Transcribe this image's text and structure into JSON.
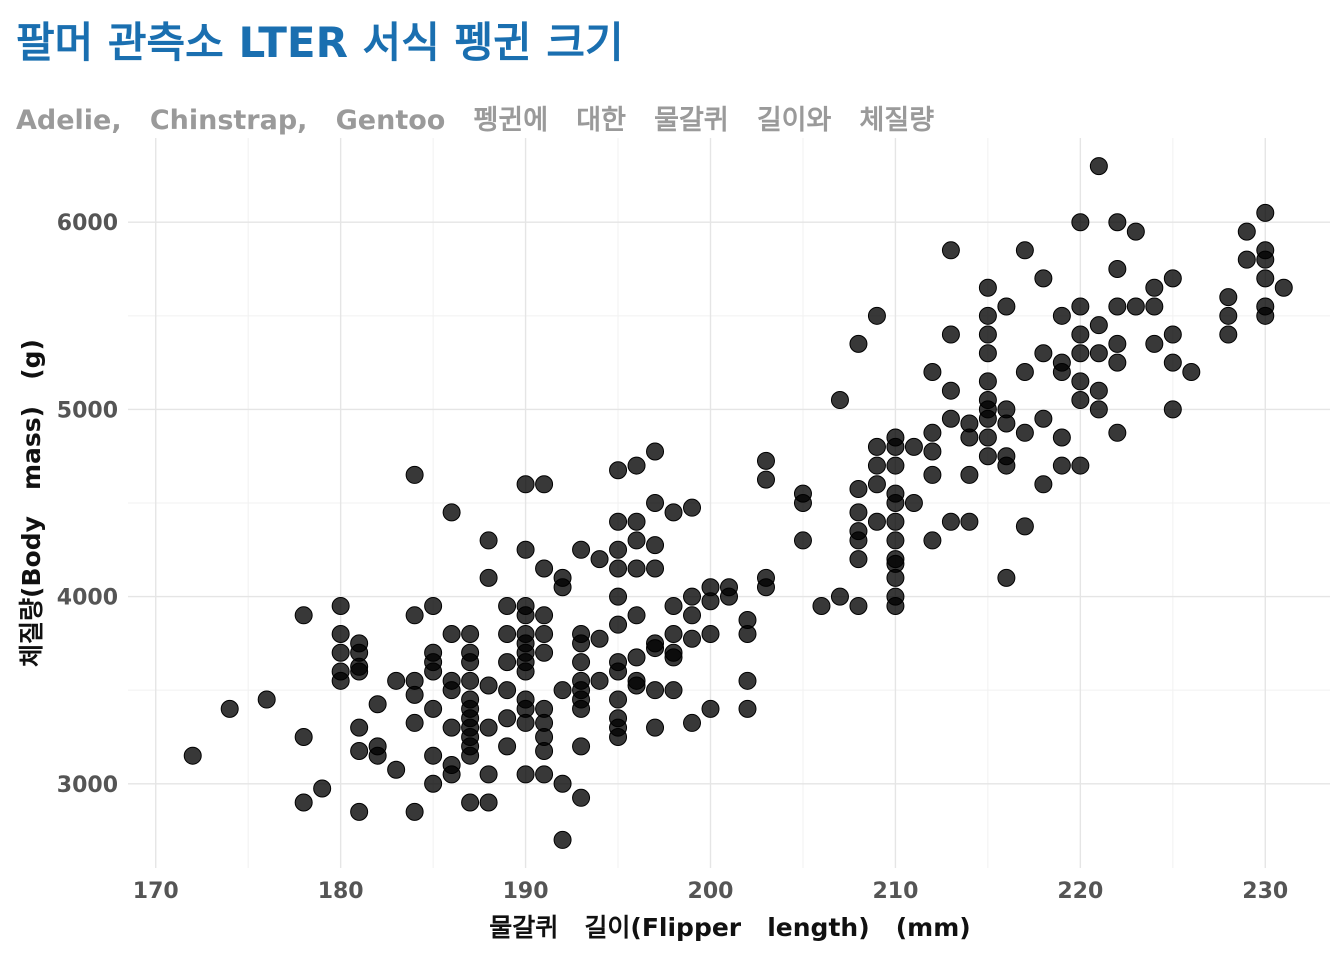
{
  "chart_data": {
    "type": "scatter",
    "title": "팔머 관측소 LTER 서식 펭귄 크기",
    "subtitle": "Adelie,   Chinstrap,   Gentoo   펭귄에   대한   물갈퀴   길이와   체질량",
    "xlabel": "물갈퀴   길이(Flipper   length)   (mm)",
    "ylabel": "체질량(Body   mass)   (g)",
    "xlim": [
      168.5,
      233.5
    ],
    "ylim": [
      2550,
      6450
    ],
    "x_ticks": [
      170,
      180,
      190,
      200,
      210,
      220,
      230
    ],
    "y_ticks": [
      3000,
      4000,
      5000,
      6000
    ],
    "grid": true,
    "legend": "none",
    "colors": {
      "title": "#1a6fb0",
      "subtitle": "#9a9a9a",
      "points": "#000000",
      "grid": "#e5e5e5"
    },
    "points": [
      [
        172,
        3150
      ],
      [
        174,
        3400
      ],
      [
        176,
        3450
      ],
      [
        178,
        3900
      ],
      [
        178,
        3250
      ],
      [
        178,
        2900
      ],
      [
        179,
        2975
      ],
      [
        180,
        3950
      ],
      [
        180,
        3800
      ],
      [
        180,
        3700
      ],
      [
        180,
        3600
      ],
      [
        180,
        3550
      ],
      [
        181,
        3750
      ],
      [
        181,
        3700
      ],
      [
        181,
        3625
      ],
      [
        181,
        3600
      ],
      [
        181,
        3300
      ],
      [
        181,
        3175
      ],
      [
        181,
        2850
      ],
      [
        182,
        3425
      ],
      [
        182,
        3200
      ],
      [
        182,
        3150
      ],
      [
        183,
        3550
      ],
      [
        183,
        3075
      ],
      [
        184,
        4650
      ],
      [
        184,
        3900
      ],
      [
        184,
        3550
      ],
      [
        184,
        3475
      ],
      [
        184,
        3325
      ],
      [
        184,
        2850
      ],
      [
        185,
        3950
      ],
      [
        185,
        3700
      ],
      [
        185,
        3650
      ],
      [
        185,
        3600
      ],
      [
        185,
        3400
      ],
      [
        185,
        3150
      ],
      [
        185,
        3000
      ],
      [
        186,
        4450
      ],
      [
        186,
        3800
      ],
      [
        186,
        3550
      ],
      [
        186,
        3500
      ],
      [
        186,
        3300
      ],
      [
        186,
        3100
      ],
      [
        186,
        3050
      ],
      [
        187,
        3800
      ],
      [
        187,
        3700
      ],
      [
        187,
        3650
      ],
      [
        187,
        3550
      ],
      [
        187,
        3450
      ],
      [
        187,
        3400
      ],
      [
        187,
        3350
      ],
      [
        187,
        3300
      ],
      [
        187,
        3250
      ],
      [
        187,
        3200
      ],
      [
        187,
        3150
      ],
      [
        187,
        2900
      ],
      [
        188,
        4300
      ],
      [
        188,
        4100
      ],
      [
        188,
        3525
      ],
      [
        188,
        3300
      ],
      [
        188,
        3050
      ],
      [
        188,
        2900
      ],
      [
        189,
        3950
      ],
      [
        189,
        3800
      ],
      [
        189,
        3650
      ],
      [
        189,
        3500
      ],
      [
        189,
        3350
      ],
      [
        189,
        3200
      ],
      [
        190,
        4600
      ],
      [
        190,
        4250
      ],
      [
        190,
        3950
      ],
      [
        190,
        3900
      ],
      [
        190,
        3800
      ],
      [
        190,
        3750
      ],
      [
        190,
        3700
      ],
      [
        190,
        3650
      ],
      [
        190,
        3600
      ],
      [
        190,
        3450
      ],
      [
        190,
        3400
      ],
      [
        190,
        3325
      ],
      [
        190,
        3050
      ],
      [
        191,
        4600
      ],
      [
        191,
        4150
      ],
      [
        191,
        3900
      ],
      [
        191,
        3800
      ],
      [
        191,
        3700
      ],
      [
        191,
        3400
      ],
      [
        191,
        3325
      ],
      [
        191,
        3250
      ],
      [
        191,
        3175
      ],
      [
        191,
        3050
      ],
      [
        192,
        4100
      ],
      [
        192,
        4050
      ],
      [
        192,
        3500
      ],
      [
        192,
        3000
      ],
      [
        192,
        2700
      ],
      [
        193,
        4250
      ],
      [
        193,
        3800
      ],
      [
        193,
        3750
      ],
      [
        193,
        3650
      ],
      [
        193,
        3550
      ],
      [
        193,
        3500
      ],
      [
        193,
        3450
      ],
      [
        193,
        3400
      ],
      [
        193,
        3200
      ],
      [
        193,
        2925
      ],
      [
        194,
        4200
      ],
      [
        194,
        3775
      ],
      [
        194,
        3550
      ],
      [
        195,
        4675
      ],
      [
        195,
        4400
      ],
      [
        195,
        4250
      ],
      [
        195,
        4150
      ],
      [
        195,
        4000
      ],
      [
        195,
        3850
      ],
      [
        195,
        3650
      ],
      [
        195,
        3600
      ],
      [
        195,
        3450
      ],
      [
        195,
        3350
      ],
      [
        195,
        3300
      ],
      [
        195,
        3250
      ],
      [
        196,
        4700
      ],
      [
        196,
        4400
      ],
      [
        196,
        4300
      ],
      [
        196,
        4150
      ],
      [
        196,
        3900
      ],
      [
        196,
        3675
      ],
      [
        196,
        3550
      ],
      [
        196,
        3525
      ],
      [
        197,
        4775
      ],
      [
        197,
        4500
      ],
      [
        197,
        4275
      ],
      [
        197,
        4150
      ],
      [
        197,
        3750
      ],
      [
        197,
        3725
      ],
      [
        197,
        3500
      ],
      [
        197,
        3300
      ],
      [
        198,
        4450
      ],
      [
        198,
        3950
      ],
      [
        198,
        3800
      ],
      [
        198,
        3700
      ],
      [
        198,
        3675
      ],
      [
        198,
        3500
      ],
      [
        199,
        4475
      ],
      [
        199,
        4000
      ],
      [
        199,
        3900
      ],
      [
        199,
        3775
      ],
      [
        199,
        3325
      ],
      [
        200,
        4050
      ],
      [
        200,
        3975
      ],
      [
        200,
        3800
      ],
      [
        200,
        3400
      ],
      [
        201,
        4050
      ],
      [
        201,
        4000
      ],
      [
        202,
        3875
      ],
      [
        202,
        3800
      ],
      [
        202,
        3550
      ],
      [
        202,
        3400
      ],
      [
        203,
        4725
      ],
      [
        203,
        4625
      ],
      [
        203,
        4100
      ],
      [
        203,
        4050
      ],
      [
        205,
        4550
      ],
      [
        205,
        4500
      ],
      [
        205,
        4300
      ],
      [
        206,
        3950
      ],
      [
        207,
        5050
      ],
      [
        207,
        4000
      ],
      [
        208,
        5350
      ],
      [
        208,
        4575
      ],
      [
        208,
        4450
      ],
      [
        208,
        4350
      ],
      [
        208,
        4300
      ],
      [
        208,
        4200
      ],
      [
        208,
        3950
      ],
      [
        209,
        5500
      ],
      [
        209,
        4800
      ],
      [
        209,
        4700
      ],
      [
        209,
        4600
      ],
      [
        209,
        4400
      ],
      [
        210,
        4850
      ],
      [
        210,
        4800
      ],
      [
        210,
        4700
      ],
      [
        210,
        4550
      ],
      [
        210,
        4500
      ],
      [
        210,
        4400
      ],
      [
        210,
        4300
      ],
      [
        210,
        4200
      ],
      [
        210,
        4175
      ],
      [
        210,
        4100
      ],
      [
        210,
        4000
      ],
      [
        210,
        3950
      ],
      [
        211,
        4800
      ],
      [
        211,
        4500
      ],
      [
        212,
        4875
      ],
      [
        212,
        4775
      ],
      [
        212,
        4650
      ],
      [
        212,
        4300
      ],
      [
        212,
        5200
      ],
      [
        213,
        5850
      ],
      [
        213,
        5400
      ],
      [
        213,
        5100
      ],
      [
        213,
        4950
      ],
      [
        213,
        4400
      ],
      [
        214,
        4925
      ],
      [
        214,
        4850
      ],
      [
        214,
        4650
      ],
      [
        214,
        4400
      ],
      [
        215,
        5650
      ],
      [
        215,
        5500
      ],
      [
        215,
        5400
      ],
      [
        215,
        5300
      ],
      [
        215,
        5150
      ],
      [
        215,
        5050
      ],
      [
        215,
        5000
      ],
      [
        215,
        4950
      ],
      [
        215,
        4850
      ],
      [
        215,
        4750
      ],
      [
        216,
        5550
      ],
      [
        216,
        5000
      ],
      [
        216,
        4925
      ],
      [
        216,
        4750
      ],
      [
        216,
        4700
      ],
      [
        216,
        4100
      ],
      [
        217,
        5850
      ],
      [
        217,
        5200
      ],
      [
        217,
        4875
      ],
      [
        217,
        4375
      ],
      [
        218,
        5700
      ],
      [
        218,
        5300
      ],
      [
        218,
        4950
      ],
      [
        218,
        4600
      ],
      [
        219,
        5500
      ],
      [
        219,
        5250
      ],
      [
        219,
        5200
      ],
      [
        219,
        4850
      ],
      [
        219,
        4700
      ],
      [
        220,
        6000
      ],
      [
        220,
        5550
      ],
      [
        220,
        5400
      ],
      [
        220,
        5300
      ],
      [
        220,
        5150
      ],
      [
        220,
        5050
      ],
      [
        220,
        4700
      ],
      [
        221,
        6300
      ],
      [
        221,
        5450
      ],
      [
        221,
        5300
      ],
      [
        221,
        5100
      ],
      [
        221,
        5000
      ],
      [
        222,
        6000
      ],
      [
        222,
        5750
      ],
      [
        222,
        5550
      ],
      [
        222,
        5350
      ],
      [
        222,
        5250
      ],
      [
        222,
        4875
      ],
      [
        223,
        5950
      ],
      [
        223,
        5550
      ],
      [
        224,
        5650
      ],
      [
        224,
        5550
      ],
      [
        224,
        5350
      ],
      [
        225,
        5700
      ],
      [
        225,
        5400
      ],
      [
        225,
        5250
      ],
      [
        225,
        5000
      ],
      [
        226,
        5200
      ],
      [
        228,
        5600
      ],
      [
        228,
        5500
      ],
      [
        228,
        5400
      ],
      [
        229,
        5950
      ],
      [
        229,
        5800
      ],
      [
        230,
        6050
      ],
      [
        230,
        5850
      ],
      [
        230,
        5800
      ],
      [
        230,
        5700
      ],
      [
        230,
        5550
      ],
      [
        230,
        5500
      ],
      [
        231,
        5650
      ]
    ]
  }
}
